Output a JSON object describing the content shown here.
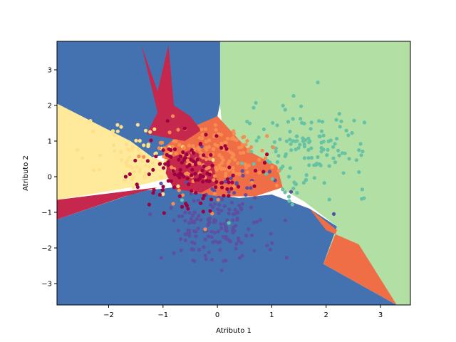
{
  "chart_data": {
    "type": "scatter",
    "title": "",
    "xlabel": "Atributo 1",
    "ylabel": "Atributo 2",
    "xlim": [
      -2.95,
      3.55
    ],
    "ylim": [
      -3.6,
      3.8
    ],
    "xticks": [
      -2,
      -1,
      0,
      1,
      2,
      3
    ],
    "yticks": [
      -3,
      -2,
      -1,
      0,
      1,
      2,
      3
    ],
    "grid": false,
    "legend": "none",
    "background_regions": [
      {
        "class": "blue",
        "color": "#4472b0",
        "polygon": [
          [
            -2.95,
            3.8
          ],
          [
            0.05,
            3.8
          ],
          [
            0.1,
            2.4
          ],
          [
            0.0,
            1.7
          ],
          [
            -0.4,
            1.2
          ],
          [
            -0.6,
            0.7
          ],
          [
            -1.2,
            0.55
          ],
          [
            -1.6,
            1.0
          ],
          [
            -2.95,
            2.05
          ],
          [
            -2.95,
            -1.2
          ],
          [
            -1.4,
            -0.4
          ],
          [
            -0.8,
            -0.3
          ],
          [
            0.4,
            -0.6
          ],
          [
            1.0,
            -0.5
          ],
          [
            1.7,
            -0.9
          ],
          [
            2.2,
            -1.4
          ],
          [
            1.95,
            -2.45
          ],
          [
            3.3,
            -3.6
          ],
          [
            -2.95,
            -3.6
          ]
        ]
      },
      {
        "class": "green",
        "color": "#b2dfa4",
        "polygon": [
          [
            0.05,
            3.8
          ],
          [
            3.55,
            3.8
          ],
          [
            3.55,
            -3.6
          ],
          [
            3.3,
            -3.6
          ],
          [
            1.95,
            -2.45
          ],
          [
            2.2,
            -1.4
          ],
          [
            1.6,
            -0.7
          ],
          [
            1.2,
            -0.35
          ],
          [
            0.7,
            0.05
          ],
          [
            0.4,
            0.6
          ],
          [
            0.1,
            1.2
          ],
          [
            0.05,
            2.0
          ]
        ]
      },
      {
        "class": "yellow",
        "color": "#feea9a",
        "polygon": [
          [
            -2.95,
            2.05
          ],
          [
            -1.6,
            1.0
          ],
          [
            -1.2,
            0.55
          ],
          [
            -0.95,
            0.4
          ],
          [
            -0.9,
            -0.05
          ],
          [
            -1.6,
            -0.3
          ],
          [
            -2.95,
            -0.65
          ]
        ]
      },
      {
        "class": "orange",
        "color": "#f06e45",
        "polygon": [
          [
            -1.0,
            0.8
          ],
          [
            -0.6,
            1.3
          ],
          [
            0.0,
            1.7
          ],
          [
            0.3,
            1.2
          ],
          [
            0.6,
            0.7
          ],
          [
            1.1,
            0.3
          ],
          [
            1.2,
            -0.3
          ],
          [
            0.7,
            -0.55
          ],
          [
            0.0,
            -0.55
          ],
          [
            -0.4,
            -0.45
          ],
          [
            -0.8,
            -0.2
          ],
          [
            -0.95,
            0.3
          ]
        ]
      },
      {
        "class": "orange",
        "color": "#f06e45",
        "polygon": [
          [
            1.7,
            -0.9
          ],
          [
            2.2,
            -1.5
          ],
          [
            1.95,
            -2.45
          ],
          [
            3.3,
            -3.6
          ],
          [
            2.6,
            -1.9
          ],
          [
            2.0,
            -1.5
          ]
        ]
      },
      {
        "class": "red",
        "color": "#c6284d",
        "polygon": [
          [
            -1.4,
            3.7
          ],
          [
            -1.1,
            2.4
          ],
          [
            -0.9,
            3.7
          ],
          [
            -0.8,
            2.0
          ],
          [
            -0.5,
            1.7
          ],
          [
            -0.3,
            1.3
          ],
          [
            -0.6,
            1.0
          ],
          [
            -1.3,
            1.2
          ],
          [
            -1.1,
            1.8
          ]
        ]
      },
      {
        "class": "red",
        "color": "#c6284d",
        "polygon": [
          [
            -2.95,
            -1.2
          ],
          [
            -1.7,
            -0.55
          ],
          [
            -1.1,
            -0.3
          ],
          [
            -2.95,
            -0.65
          ]
        ]
      },
      {
        "class": "red",
        "color": "#c6284d",
        "polygon": [
          [
            -0.9,
            0.5
          ],
          [
            -0.5,
            0.75
          ],
          [
            -0.1,
            0.5
          ],
          [
            0.0,
            -0.2
          ],
          [
            -0.3,
            -0.45
          ],
          [
            -0.8,
            -0.35
          ],
          [
            -0.95,
            0.1
          ]
        ]
      }
    ],
    "series": [
      {
        "class": "blue",
        "color": "#5e4fa2",
        "cluster": {
          "cx": 0.0,
          "cy": -1.3,
          "sx": 0.55,
          "sy": 0.65,
          "n": 170
        }
      },
      {
        "class": "green",
        "color": "#66c2a5",
        "cluster": {
          "cx": 1.7,
          "cy": 0.8,
          "sx": 0.55,
          "sy": 0.6,
          "n": 140
        }
      },
      {
        "class": "yellow",
        "color": "#fee08b",
        "cluster": {
          "cx": -1.5,
          "cy": 0.55,
          "sx": 0.45,
          "sy": 0.45,
          "n": 70
        }
      },
      {
        "class": "orange",
        "color": "#f88d52",
        "cluster": {
          "cx": -0.1,
          "cy": 0.55,
          "sx": 0.55,
          "sy": 0.5,
          "n": 170
        }
      },
      {
        "class": "red",
        "color": "#9e0142",
        "cluster": {
          "cx": -0.45,
          "cy": 0.15,
          "sx": 0.5,
          "sy": 0.5,
          "n": 120
        }
      }
    ]
  }
}
